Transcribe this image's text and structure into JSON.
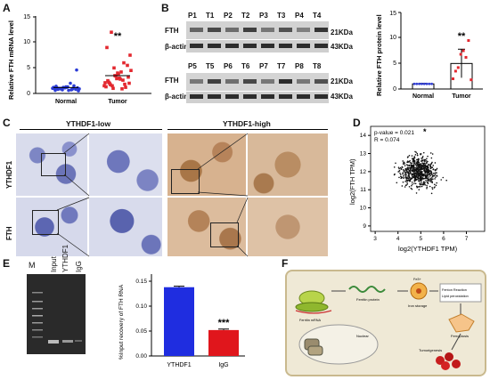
{
  "panels": {
    "A": "A",
    "B": "B",
    "C": "C",
    "D": "D",
    "E": "E",
    "F": "F"
  },
  "panelA": {
    "ylabel": "Relative FTH mRNA level",
    "yticks": [
      "0",
      "5",
      "10",
      "15"
    ],
    "categories": [
      "Normal",
      "Tumor"
    ],
    "sig": "**",
    "colors": {
      "normal": "#2a3bd6",
      "tumor": "#e3282f"
    }
  },
  "panelB": {
    "lanes_top": [
      "P1",
      "T1",
      "P2",
      "T2",
      "P3",
      "T3",
      "P4",
      "T4"
    ],
    "lanes_bottom": [
      "P5",
      "T5",
      "P6",
      "T6",
      "P7",
      "T7",
      "P8",
      "T8"
    ],
    "row_labels": {
      "fth": "FTH",
      "actin": "β-actin"
    },
    "sizes": {
      "fth": "21KDa",
      "actin": "43KDa"
    },
    "chart": {
      "ylabel": "Relative FTH protein level",
      "yticks": [
        "0",
        "5",
        "10",
        "15"
      ],
      "categories": [
        "Normal",
        "Tumor"
      ],
      "sig": "**"
    }
  },
  "panelC": {
    "header_low": "YTHDF1-low",
    "header_high": "YTHDF1-high",
    "rows": [
      "YTHDF1",
      "FTH"
    ]
  },
  "panelD": {
    "annot_p": "p-value = 0.021",
    "annot_r": "R = 0.074",
    "xlabel": "log2(YTHDF1 TPM)",
    "ylabel": "log2(FTH TPM)",
    "xticks": [
      "3",
      "4",
      "5",
      "6",
      "7"
    ],
    "yticks": [
      "9",
      "10",
      "11",
      "12",
      "13",
      "14"
    ]
  },
  "panelE": {
    "gel_lanes": [
      "M",
      "Input",
      "YTHDF1",
      "IgG"
    ],
    "ylabel": "%Input recovery of FTH RNA",
    "yticks": [
      "0.00",
      "0.05",
      "0.10",
      "0.15"
    ],
    "sig": "***",
    "colors": {
      "ythdf1": "#1f2de0",
      "igg": "#e0161c"
    }
  },
  "panelF": {
    "labels": {
      "mrna": "Ferritin mRNA",
      "protein": "Ferritin protein",
      "iron": "Iron storage",
      "fenton1": "Fenton Reaction",
      "fenton2": "Lipid peroxidation",
      "ferroptosis": "Ferroptosis",
      "nuclear": "Nuclear",
      "tumor": "Tumorigenesis",
      "fe": "Fe3+"
    }
  },
  "chart_data": [
    {
      "type": "scatter",
      "title": "",
      "ylabel": "Relative FTH mRNA level",
      "categories": [
        "Normal",
        "Tumor"
      ],
      "ylim": [
        0,
        15
      ],
      "series": [
        {
          "name": "Normal",
          "values": [
            1.0,
            0.8,
            1.2,
            0.6,
            1.5,
            0.9,
            1.1,
            0.7,
            1.3,
            1.0,
            0.5,
            1.4,
            0.9,
            1.2,
            0.8,
            1.1,
            0.6,
            1.0,
            1.3,
            0.7,
            4.6,
            1.0,
            0.9,
            1.1,
            2.0,
            0.8,
            1.2,
            1.0
          ]
        },
        {
          "name": "Tumor",
          "values": [
            1.5,
            2.0,
            3.5,
            2.8,
            1.2,
            4.5,
            2.2,
            5.0,
            3.0,
            1.8,
            7.5,
            2.5,
            1.0,
            3.8,
            6.0,
            2.0,
            9.0,
            1.5,
            4.0,
            2.6,
            3.2,
            1.3,
            12.0,
            2.9,
            0.9,
            5.5,
            2.1,
            1.7,
            3.4,
            4.2
          ]
        }
      ]
    },
    {
      "type": "bar",
      "title": "",
      "ylabel": "Relative FTH protein level",
      "categories": [
        "Normal",
        "Tumor"
      ],
      "values": [
        1.0,
        5.0
      ],
      "errors": [
        0.1,
        2.8
      ],
      "points": {
        "Normal": [
          1,
          1,
          1,
          1,
          1,
          1,
          1,
          1
        ],
        "Tumor": [
          2.0,
          3.5,
          4.2,
          6.8,
          7.5,
          6.2,
          9.5,
          1.8
        ]
      },
      "ylim": [
        0,
        15
      ]
    },
    {
      "type": "scatter",
      "title": "",
      "xlabel": "log2(YTHDF1 TPM)",
      "ylabel": "log2(FTH TPM)",
      "xlim": [
        2.8,
        7.8
      ],
      "ylim": [
        8.7,
        14.5
      ],
      "n_points": 700,
      "center": {
        "x": 4.9,
        "y": 12.0
      },
      "p_value": 0.021,
      "R": 0.074
    },
    {
      "type": "bar",
      "title": "",
      "ylabel": "%Input recovery of FTH RNA",
      "categories": [
        "YTHDF1",
        "IgG"
      ],
      "values": [
        0.138,
        0.052
      ],
      "errors": [
        0.002,
        0.002
      ],
      "ylim": [
        0,
        0.15
      ]
    }
  ]
}
